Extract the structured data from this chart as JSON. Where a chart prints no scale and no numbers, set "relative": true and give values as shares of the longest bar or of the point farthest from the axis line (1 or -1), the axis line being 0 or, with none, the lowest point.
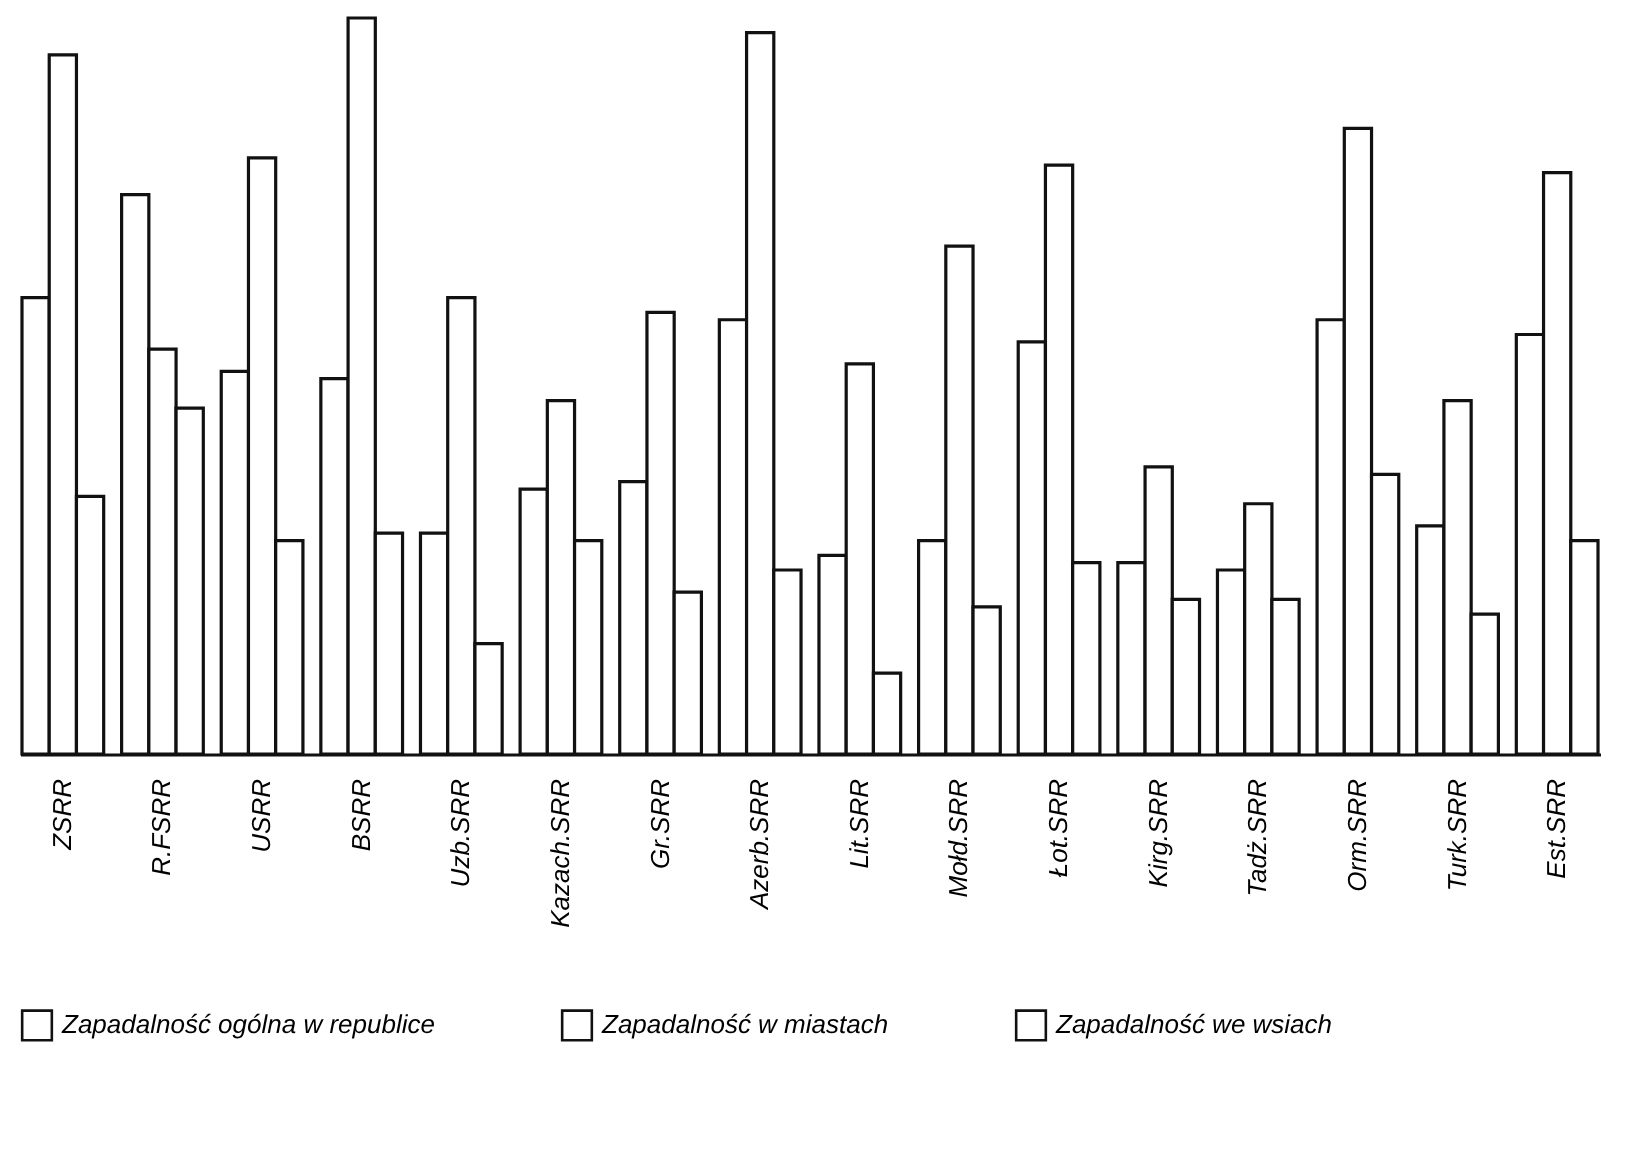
{
  "chart_data": {
    "type": "bar",
    "relative": true,
    "legend": "bottom",
    "grid": false,
    "categories": [
      "ZSRR",
      "R.FSRR",
      "USRR",
      "BSRR",
      "Uzb.SRR",
      "Kazach.SRR",
      "Gr.SRR",
      "Azerb.SRR",
      "Lit.SRR",
      "Mołd.SRR",
      "Łot.SRR",
      "Kirg.SRR",
      "Tadż.SRR",
      "Orm.SRR",
      "Turk.SRR",
      "Est.SRR"
    ],
    "series": [
      {
        "name": "Zapadalność ogólna w republice",
        "color": "#ffffff",
        "values": [
          0.62,
          0.76,
          0.52,
          0.51,
          0.3,
          0.36,
          0.37,
          0.59,
          0.27,
          0.29,
          0.56,
          0.26,
          0.25,
          0.59,
          0.31,
          0.57
        ]
      },
      {
        "name": "Zapadalność w miastach",
        "color": "#ffffff",
        "values": [
          0.95,
          0.55,
          0.81,
          1,
          0.62,
          0.48,
          0.6,
          0.98,
          0.53,
          0.69,
          0.8,
          0.39,
          0.34,
          0.85,
          0.48,
          0.79
        ]
      },
      {
        "name": "Zapadalność we wsiach",
        "color": "#ffffff",
        "values": [
          0.35,
          0.47,
          0.29,
          0.3,
          0.15,
          0.29,
          0.22,
          0.25,
          0.11,
          0.2,
          0.26,
          0.21,
          0.21,
          0.38,
          0.19,
          0.29
        ]
      }
    ]
  }
}
